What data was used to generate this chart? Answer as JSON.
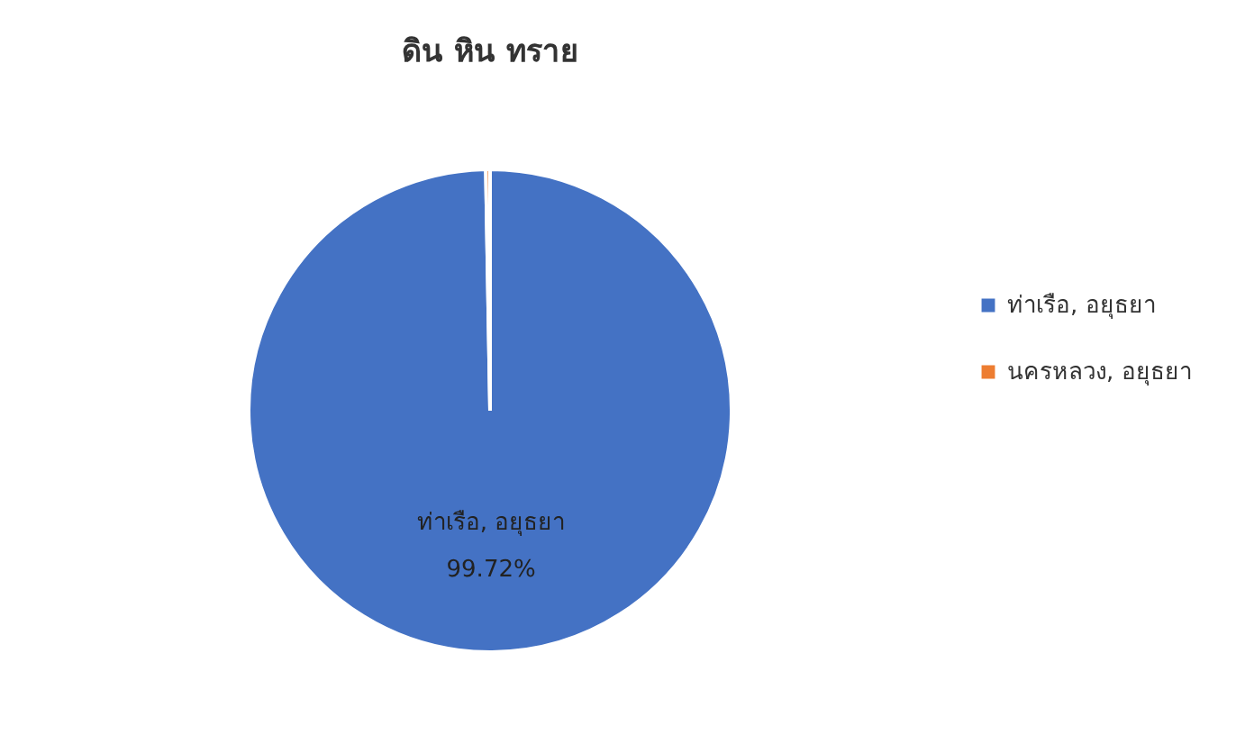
{
  "chart_data": {
    "type": "pie",
    "title": "ดิน หิน ทราย",
    "categories": [
      "ท่าเรือ, อยุธยา",
      "นครหลวง, อยุธยา"
    ],
    "values": [
      99.72,
      0.28
    ],
    "colors": [
      "#4472c4",
      "#ed7d31"
    ],
    "value_labels": [
      "99.72%",
      null
    ],
    "legend": "right"
  }
}
